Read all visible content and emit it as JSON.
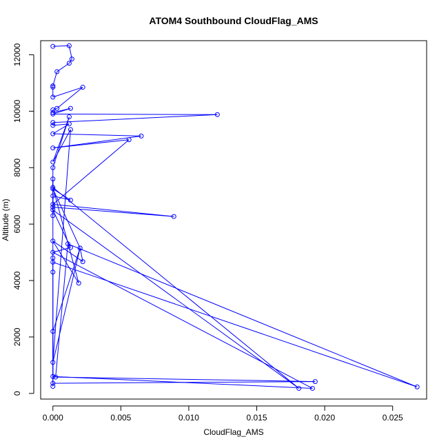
{
  "chart_data": {
    "type": "line",
    "title": "ATOM4 Southbound CloudFlag_AMS",
    "xlabel": "CloudFlag_AMS",
    "ylabel": "Altitude (m)",
    "xlim": [
      -0.0009,
      0.0275
    ],
    "ylim": [
      -200,
      12500
    ],
    "x_ticks": [
      0.0,
      0.005,
      0.01,
      0.015,
      0.02,
      0.025
    ],
    "x_tick_labels": [
      "0.000",
      "0.005",
      "0.010",
      "0.015",
      "0.020",
      "0.025"
    ],
    "y_ticks": [
      0,
      2000,
      4000,
      6000,
      8000,
      10000,
      12000
    ],
    "y_tick_labels": [
      "0",
      "2000",
      "4000",
      "6000",
      "8000",
      "10000",
      "12000"
    ],
    "grid": false,
    "series": [
      {
        "color": "#0000ff",
        "marker": "open-circle",
        "x": [
          0,
          0.0012,
          0.0014,
          0.0012,
          0.0003,
          0,
          0,
          0,
          0.0022,
          0.0003,
          0,
          0,
          0.0013,
          0,
          0.0121,
          0,
          0,
          0.0012,
          0,
          0.0065,
          0,
          0.0056,
          0,
          0.0089,
          0,
          0,
          0.0013,
          0,
          0.002,
          0.0022,
          0,
          0.0019,
          0,
          0.0181,
          0,
          0.0013,
          0,
          0.0191,
          0,
          0,
          0,
          0.0268,
          0.0011,
          0.0002,
          0.0193,
          0,
          0,
          0.002,
          0,
          0.0013,
          0,
          0.0012,
          0,
          0,
          0,
          0,
          0
        ],
        "y": [
          12300,
          12320,
          11850,
          11700,
          11400,
          10900,
          10850,
          10500,
          10850,
          10100,
          10050,
          9950,
          10100,
          9900,
          9880,
          9600,
          9500,
          9550,
          9200,
          9120,
          8700,
          8990,
          6700,
          6270,
          6600,
          7000,
          6850,
          7250,
          5150,
          4670,
          5400,
          3910,
          7300,
          180,
          6500,
          5170,
          5000,
          180,
          600,
          4800,
          4650,
          230,
          5300,
          580,
          420,
          360,
          2200,
          5150,
          1100,
          9350,
          8200,
          9800,
          8000,
          6300,
          7600,
          4300,
          250
        ]
      }
    ]
  }
}
